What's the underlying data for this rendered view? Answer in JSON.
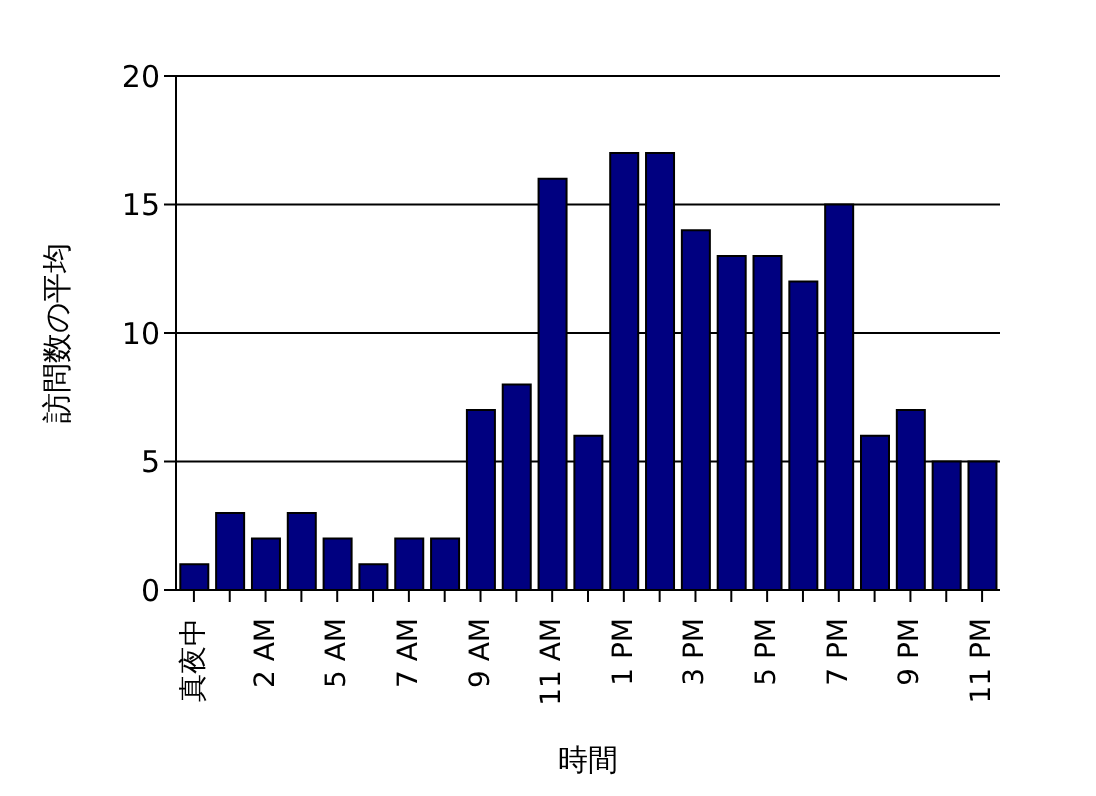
{
  "chart_data": {
    "type": "bar",
    "xlabel": "時間",
    "ylabel": "訪問数の平均",
    "categories": [
      "真夜中",
      null,
      "2 AM",
      null,
      "5 AM",
      null,
      "7 AM",
      null,
      "9 AM",
      null,
      "11 AM",
      null,
      "1 PM",
      null,
      "3 PM",
      null,
      "5 PM",
      null,
      "7 PM",
      null,
      "9 PM",
      null,
      "11 PM"
    ],
    "values": [
      1,
      3,
      2,
      3,
      2,
      1,
      2,
      2,
      7,
      8,
      16,
      6,
      17,
      17,
      14,
      13,
      13,
      12,
      15,
      6,
      7,
      5,
      5
    ],
    "color": "#000080",
    "ylim": [
      0,
      20
    ],
    "yticks": [
      0,
      5,
      10,
      15,
      20
    ],
    "grid": "y"
  }
}
